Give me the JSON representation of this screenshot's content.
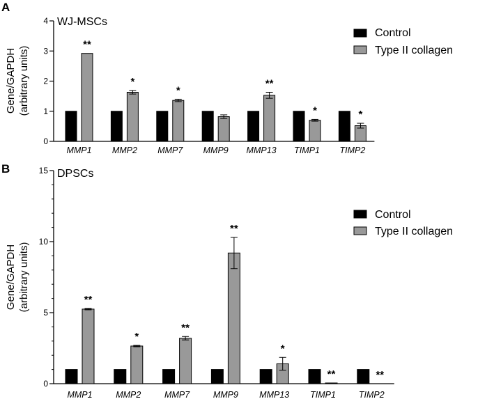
{
  "chart_data": [
    {
      "panel": "A",
      "type": "bar",
      "title": "WJ-MSCs",
      "ylabel_line1": "Gene/GAPDH",
      "ylabel_line2": "(arbitrary units)",
      "xlabel": "",
      "ylim": [
        0,
        4
      ],
      "yticks": [
        0,
        1,
        2,
        3,
        4
      ],
      "categories": [
        "MMP1",
        "MMP2",
        "MMP7",
        "MMP9",
        "MMP13",
        "TIMP1",
        "TIMP2"
      ],
      "series": [
        {
          "name": "Control",
          "color": "#000000",
          "values": [
            1,
            1,
            1,
            1,
            1,
            1,
            1
          ],
          "errors": [
            0,
            0,
            0,
            0,
            0,
            0,
            0
          ]
        },
        {
          "name": "Type II collagen",
          "color": "#999999",
          "values": [
            2.92,
            1.63,
            1.36,
            0.82,
            1.53,
            0.7,
            0.52
          ],
          "errors": [
            0,
            0.06,
            0.04,
            0.06,
            0.1,
            0.03,
            0.08
          ]
        }
      ],
      "significance": [
        "**",
        "*",
        "*",
        "",
        "**",
        "*",
        "*"
      ],
      "legend_position": "top-right"
    },
    {
      "panel": "B",
      "type": "bar",
      "title": "DPSCs",
      "ylabel_line1": "Gene/GAPDH",
      "ylabel_line2": "(arbitrary units)",
      "xlabel": "",
      "ylim": [
        0,
        15
      ],
      "yticks": [
        0,
        5,
        10,
        15
      ],
      "minor_tick_step": 1,
      "categories": [
        "MMP1",
        "MMP2",
        "MMP7",
        "MMP9",
        "MMP13",
        "TIMP1",
        "TIMP2"
      ],
      "series": [
        {
          "name": "Control",
          "color": "#000000",
          "values": [
            1,
            1,
            1,
            1,
            1,
            1,
            1
          ],
          "errors": [
            0,
            0,
            0,
            0,
            0,
            0,
            0
          ]
        },
        {
          "name": "Type II collagen",
          "color": "#999999",
          "values": [
            5.25,
            2.65,
            3.2,
            9.2,
            1.4,
            0.05,
            0.0
          ],
          "errors": [
            0.05,
            0.05,
            0.12,
            1.1,
            0.45,
            0,
            0
          ]
        }
      ],
      "significance": [
        "**",
        "*",
        "**",
        "**",
        "*",
        "**",
        "**"
      ],
      "legend_position": "top-right"
    }
  ]
}
